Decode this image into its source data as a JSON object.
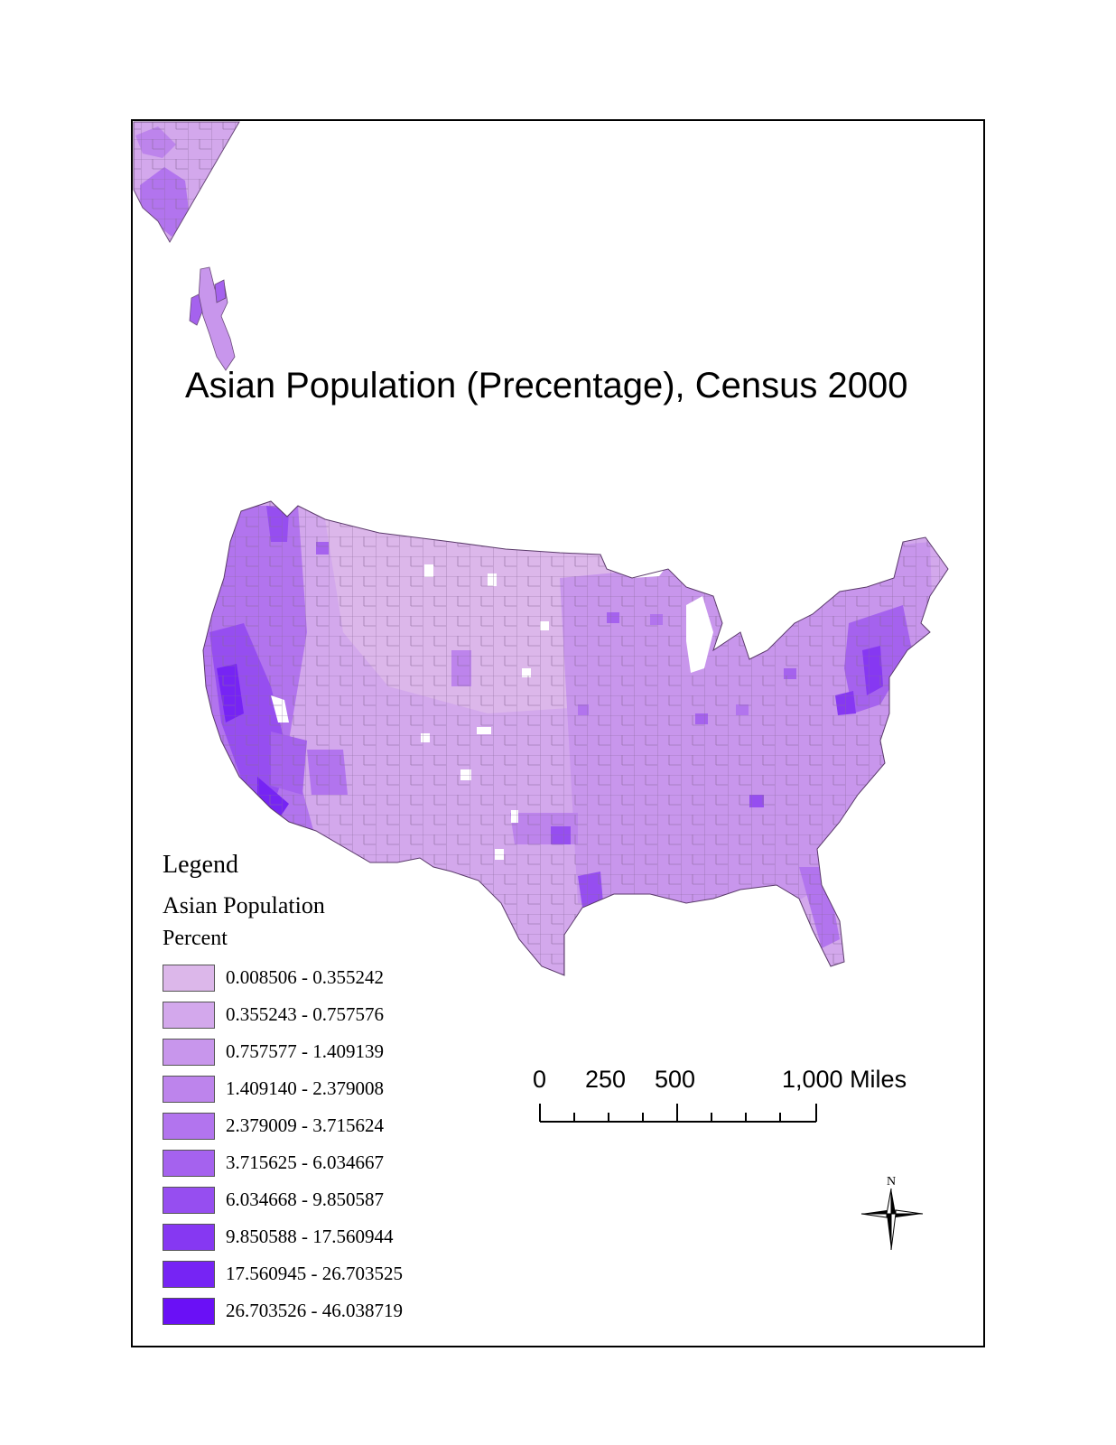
{
  "title": "Asian Population (Precentage), Census 2000",
  "legend": {
    "title": "Legend",
    "layer": "Asian Population",
    "field": "Percent",
    "classes": [
      {
        "label": "0.008506 - 0.355242",
        "color": "#dcb7ea"
      },
      {
        "label": "0.355243 - 0.757576",
        "color": "#d3a8ec"
      },
      {
        "label": "0.757577 - 1.409139",
        "color": "#c896ec"
      },
      {
        "label": "1.409140 - 2.379008",
        "color": "#bd84ec"
      },
      {
        "label": "2.379009 - 3.715624",
        "color": "#b274ee"
      },
      {
        "label": "3.715625 - 6.034667",
        "color": "#a562ee"
      },
      {
        "label": "6.034668 - 9.850587",
        "color": "#964ef0"
      },
      {
        "label": "9.850588 - 17.560944",
        "color": "#8638f2"
      },
      {
        "label": "17.560945 - 26.703525",
        "color": "#7624f4"
      },
      {
        "label": "26.703526 - 46.038719",
        "color": "#6a10f6"
      }
    ]
  },
  "scalebar": {
    "labels": [
      "0",
      "250",
      "500",
      "1,000 Miles"
    ]
  },
  "north_arrow": {
    "label": "N",
    "icon": "north-arrow-icon"
  },
  "colors": {
    "border": "#000000",
    "county_line": "#8a6a9a",
    "no_data": "#ffffff"
  }
}
